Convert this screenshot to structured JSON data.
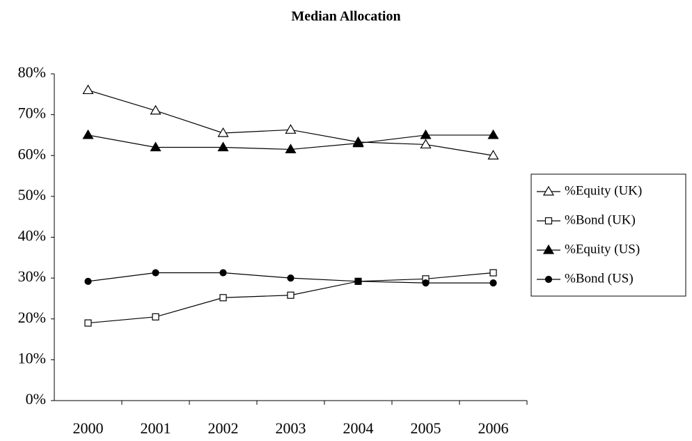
{
  "chart_data": {
    "type": "line",
    "title": "Median Allocation",
    "categories": [
      "2000",
      "2001",
      "2002",
      "2003",
      "2004",
      "2005",
      "2006"
    ],
    "ylim": [
      0,
      80
    ],
    "yticks": [
      {
        "value": 0,
        "label": "0%"
      },
      {
        "value": 10,
        "label": "10%"
      },
      {
        "value": 20,
        "label": "20%"
      },
      {
        "value": 30,
        "label": "30%"
      },
      {
        "value": 40,
        "label": "40%"
      },
      {
        "value": 50,
        "label": "50%"
      },
      {
        "value": 60,
        "label": "60%"
      },
      {
        "value": 70,
        "label": "70%"
      },
      {
        "value": 80,
        "label": "80%"
      }
    ],
    "grid": false,
    "legend": "right",
    "series": [
      {
        "name": "%Equity (UK)",
        "color": "#000000",
        "marker": "triangle",
        "filled": false,
        "values": [
          76,
          71,
          65.5,
          66.3,
          63.3,
          62.7,
          60
        ]
      },
      {
        "name": "%Bond (UK)",
        "color": "#000000",
        "marker": "square",
        "filled": false,
        "values": [
          19,
          20.5,
          25.2,
          25.8,
          29.2,
          29.8,
          31.3
        ]
      },
      {
        "name": "%Equity (US)",
        "color": "#000000",
        "marker": "triangle",
        "filled": true,
        "values": [
          65,
          62,
          62,
          61.5,
          63,
          65,
          65
        ]
      },
      {
        "name": "%Bond (US)",
        "color": "#000000",
        "marker": "circle",
        "filled": true,
        "values": [
          29.2,
          31.3,
          31.3,
          30,
          29.2,
          28.8,
          28.8
        ]
      }
    ]
  }
}
